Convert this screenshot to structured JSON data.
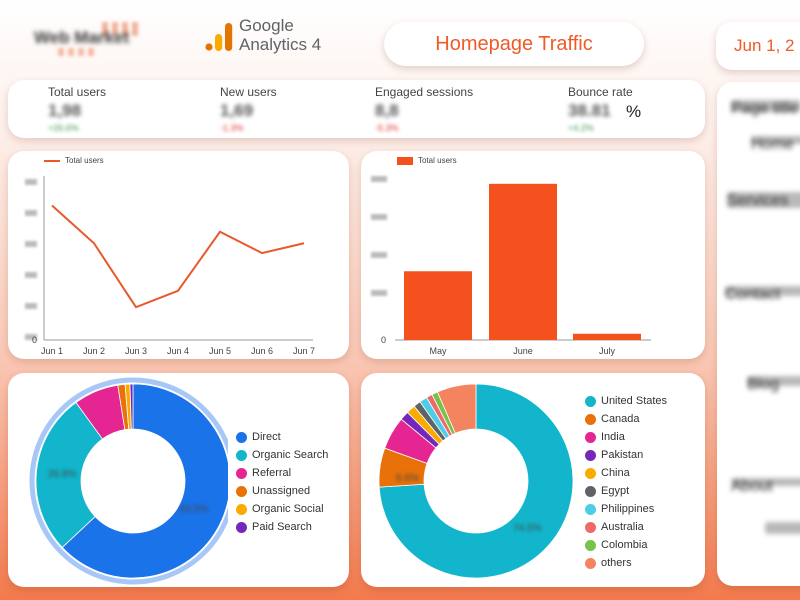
{
  "header": {
    "brand": "Web Market",
    "ga_name": "Google",
    "ga_product": "Analytics 4",
    "title": "Homepage Traffic",
    "date": "Jun 1, 2"
  },
  "kpis": [
    {
      "label": "Total users",
      "value": "1,98",
      "delta": "+26.6%"
    },
    {
      "label": "New users",
      "value": "1,69",
      "delta": "-1.3%"
    },
    {
      "label": "Engaged sessions",
      "value": "8,8",
      "delta": "-5.3%"
    },
    {
      "label": "Bounce rate",
      "value": "38.81",
      "unit": "%",
      "delta": "+4.2%"
    }
  ],
  "line_chart": {
    "legend": "Total users",
    "y_zero": "0",
    "y_ticks_blurred": [
      "300",
      "250",
      "200",
      "150",
      "100",
      "50"
    ]
  },
  "bar_chart": {
    "legend": "Total users",
    "y_zero": "0",
    "y_ticks_blurred": [
      "3000",
      "2000",
      "1000",
      "500"
    ]
  },
  "chart_data": [
    {
      "type": "line",
      "series": [
        {
          "name": "Total users",
          "values": [
            0.82,
            0.59,
            0.2,
            0.3,
            0.66,
            0.53,
            0.59
          ]
        }
      ],
      "x": [
        "Jun 1",
        "Jun 2",
        "Jun 3",
        "Jun 4",
        "Jun 5",
        "Jun 6",
        "Jun 7"
      ],
      "ylim": [
        0,
        1
      ],
      "color": "#e8582a"
    },
    {
      "type": "bar",
      "categories": [
        "May",
        "June",
        "July"
      ],
      "series": [
        {
          "name": "Total users",
          "values": [
            0.44,
            1.0,
            0.04
          ]
        }
      ],
      "ylim": [
        0,
        1.05
      ],
      "color": "#f4511e"
    },
    {
      "type": "pie",
      "categories": [
        "Direct",
        "Organic Search",
        "Referral",
        "Unassigned",
        "Organic Social",
        "Paid Search"
      ],
      "values": [
        63,
        27,
        7.5,
        1.2,
        0.8,
        0.5
      ],
      "colors": [
        "#1a73e8",
        "#12b5cb",
        "#e52592",
        "#e8710a",
        "#f9ab00",
        "#7627bb"
      ]
    },
    {
      "type": "pie",
      "categories": [
        "United States",
        "Canada",
        "India",
        "Pakistan",
        "China",
        "Egypt",
        "Philippines",
        "Australia",
        "Colombia",
        "others"
      ],
      "values": [
        74,
        6.5,
        5.5,
        1.5,
        1.5,
        1.2,
        1.3,
        1.0,
        1.0,
        6.5
      ],
      "colors": [
        "#12b5cb",
        "#e8710a",
        "#e52592",
        "#7627bb",
        "#f9ab00",
        "#5f6368",
        "#4ecde6",
        "#ee6a6a",
        "#79c24a",
        "#f4845f"
      ]
    }
  ],
  "donut1_labels": {
    "a": "26.9%",
    "b": "63.5%"
  },
  "donut2_labels": {
    "a": "6.6%",
    "b": "74.5%"
  },
  "sidebar": {
    "rows": [
      "Page title",
      "Home",
      "Services",
      "Contact",
      "Blog",
      "About"
    ]
  }
}
